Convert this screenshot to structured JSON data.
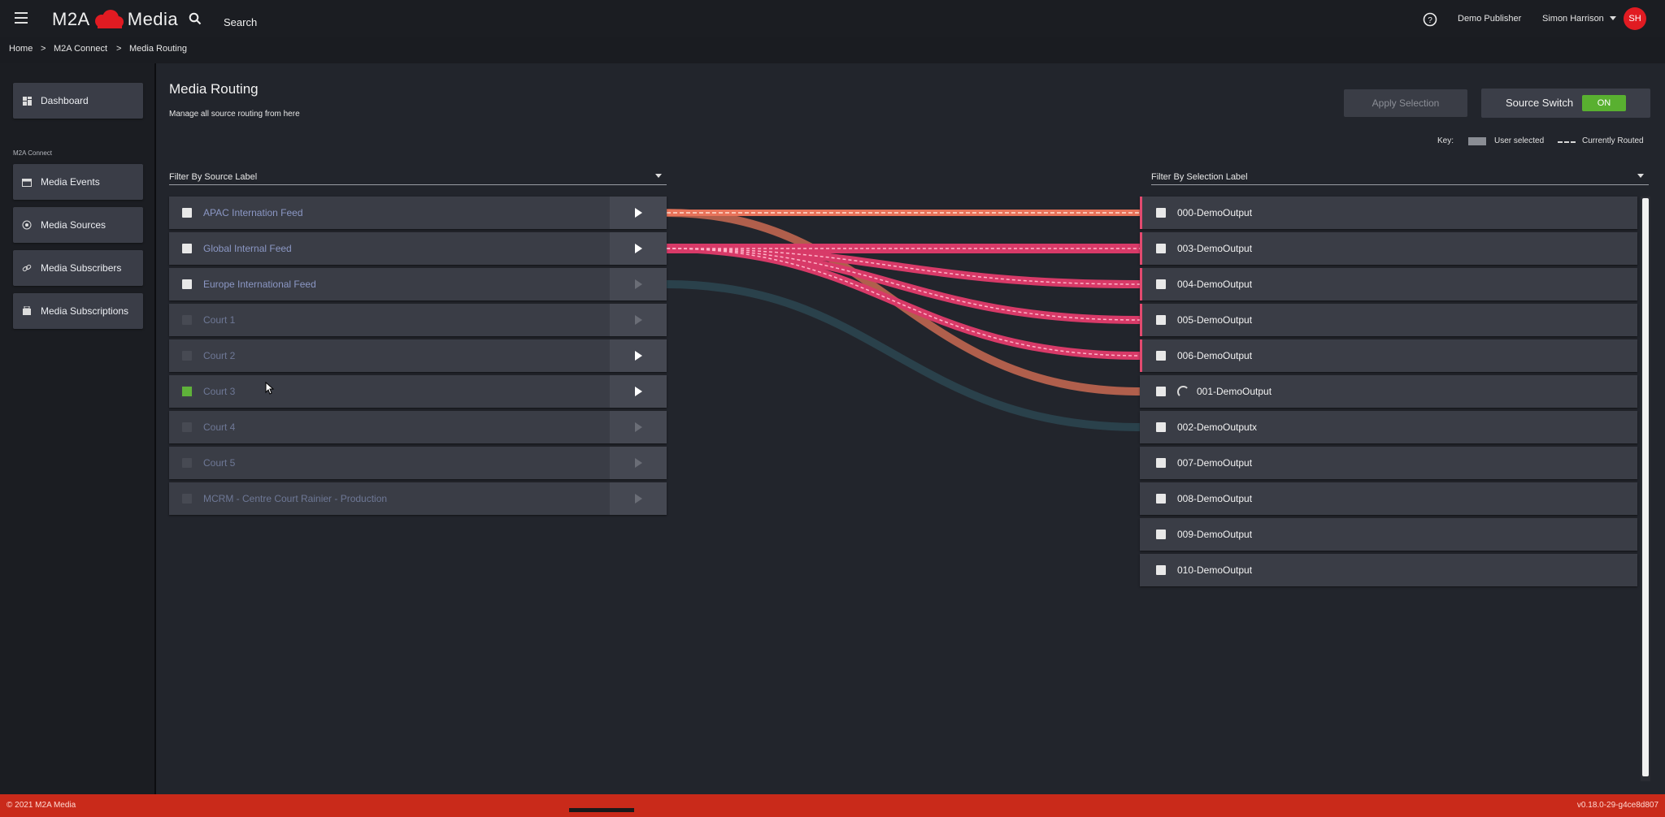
{
  "app": {
    "brand_left": "M2A",
    "brand_right": "Media",
    "search_label": "Search",
    "publisher": "Demo Publisher",
    "user_name": "Simon Harrison",
    "user_initials": "SH",
    "brand_color": "#e11b22"
  },
  "breadcrumb": [
    "Home",
    ">",
    "M2A Connect",
    ">",
    "Media Routing"
  ],
  "sidebar": {
    "dashboard": "Dashboard",
    "section": "M2A Connect",
    "items": [
      "Media Events",
      "Media Sources",
      "Media Subscribers",
      "Media Subscriptions"
    ]
  },
  "page": {
    "title": "Media Routing",
    "subtitle": "Manage all source routing from here",
    "apply_label": "Apply Selection",
    "source_switch_label": "Source Switch",
    "source_switch_state": "ON",
    "key_label": "Key:",
    "key_user_selected": "User selected",
    "key_currently_routed": "Currently Routed"
  },
  "filters": {
    "source": "Filter By Source Label",
    "selection": "Filter By Selection Label"
  },
  "sources": [
    {
      "label": "APAC Internation Feed",
      "checkbox": "white",
      "play_enabled": true
    },
    {
      "label": "Global Internal Feed",
      "checkbox": "white",
      "play_enabled": true
    },
    {
      "label": "Europe International Feed",
      "checkbox": "white",
      "play_enabled": false
    },
    {
      "label": "Court 1",
      "checkbox": "dim",
      "play_enabled": false
    },
    {
      "label": "Court 2",
      "checkbox": "dim",
      "play_enabled": true
    },
    {
      "label": "Court 3",
      "checkbox": "green",
      "play_enabled": true
    },
    {
      "label": "Court 4",
      "checkbox": "dim",
      "play_enabled": false
    },
    {
      "label": "Court 5",
      "checkbox": "dim",
      "play_enabled": false
    },
    {
      "label": "MCRM - Centre Court Rainier - Production",
      "checkbox": "dim",
      "play_enabled": false
    }
  ],
  "outputs": [
    {
      "label": "000-DemoOutput",
      "routed": true,
      "loading": false
    },
    {
      "label": "003-DemoOutput",
      "routed": true,
      "loading": false
    },
    {
      "label": "004-DemoOutput",
      "routed": true,
      "loading": false
    },
    {
      "label": "005-DemoOutput",
      "routed": true,
      "loading": false
    },
    {
      "label": "006-DemoOutput",
      "routed": true,
      "loading": false
    },
    {
      "label": "001-DemoOutput",
      "routed": false,
      "loading": true
    },
    {
      "label": "002-DemoOutputx",
      "routed": false,
      "loading": false
    },
    {
      "label": "007-DemoOutput",
      "routed": false,
      "loading": false
    },
    {
      "label": "008-DemoOutput",
      "routed": false,
      "loading": false
    },
    {
      "label": "009-DemoOutput",
      "routed": false,
      "loading": false
    },
    {
      "label": "010-DemoOutput",
      "routed": false,
      "loading": false
    }
  ],
  "routes": [
    {
      "from": "APAC Internation Feed",
      "to": "000-DemoOutput",
      "color": "#e8735a",
      "style": "dashed"
    },
    {
      "from": "APAC Internation Feed",
      "to": "001-DemoOutput",
      "color": "#c96a52",
      "style": "solid"
    },
    {
      "from": "Global Internal Feed",
      "to": "003-DemoOutput",
      "color": "#e0416e",
      "style": "dashed"
    },
    {
      "from": "Global Internal Feed",
      "to": "004-DemoOutput",
      "color": "#e0416e",
      "style": "dashed"
    },
    {
      "from": "Global Internal Feed",
      "to": "005-DemoOutput",
      "color": "#e0416e",
      "style": "dashed"
    },
    {
      "from": "Global Internal Feed",
      "to": "006-DemoOutput",
      "color": "#e0416e",
      "style": "dashed"
    },
    {
      "from": "Europe International Feed",
      "to": "002-DemoOutputx",
      "color": "#2b4651",
      "style": "solid"
    }
  ],
  "footer": {
    "copyright": "© 2021 M2A Media",
    "version": "v0.18.0-29-g4ce8d807",
    "bar_color": "#c92a1a"
  }
}
